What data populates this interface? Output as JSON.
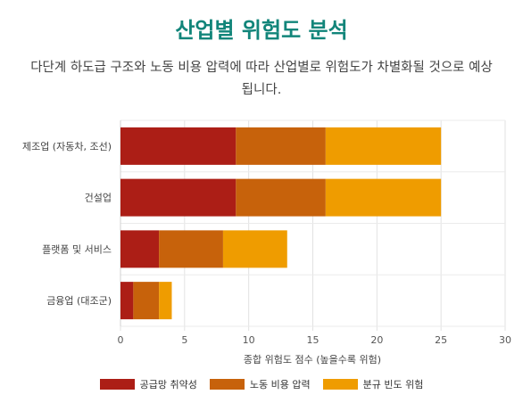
{
  "title": "산업별 위험도 분석",
  "subtitle": "다단계 하도급 구조와 노동 비용 압력에 따라 산업별로 위험도가 차별화될 것으로 예상됩니다.",
  "chart_data": {
    "type": "bar",
    "orientation": "horizontal",
    "stacked": true,
    "categories": [
      "제조업 (자동차, 조선)",
      "건설업",
      "플랫폼 및 서비스",
      "금융업 (대조군)"
    ],
    "series": [
      {
        "name": "공급망 취약성",
        "color": "#ac1e16",
        "values": [
          9,
          9,
          3,
          1
        ]
      },
      {
        "name": "노동 비용 압력",
        "color": "#c7620b",
        "values": [
          7,
          7,
          5,
          2
        ]
      },
      {
        "name": "분규 빈도 위험",
        "color": "#ef9c00",
        "values": [
          9,
          9,
          5,
          1
        ]
      }
    ],
    "xlabel": "종합 위험도 점수 (높을수록 위험)",
    "ylabel": "",
    "xlim": [
      0,
      30
    ],
    "xticks": [
      0,
      5,
      10,
      15,
      20,
      25,
      30
    ],
    "grid": true,
    "legend_position": "bottom"
  }
}
